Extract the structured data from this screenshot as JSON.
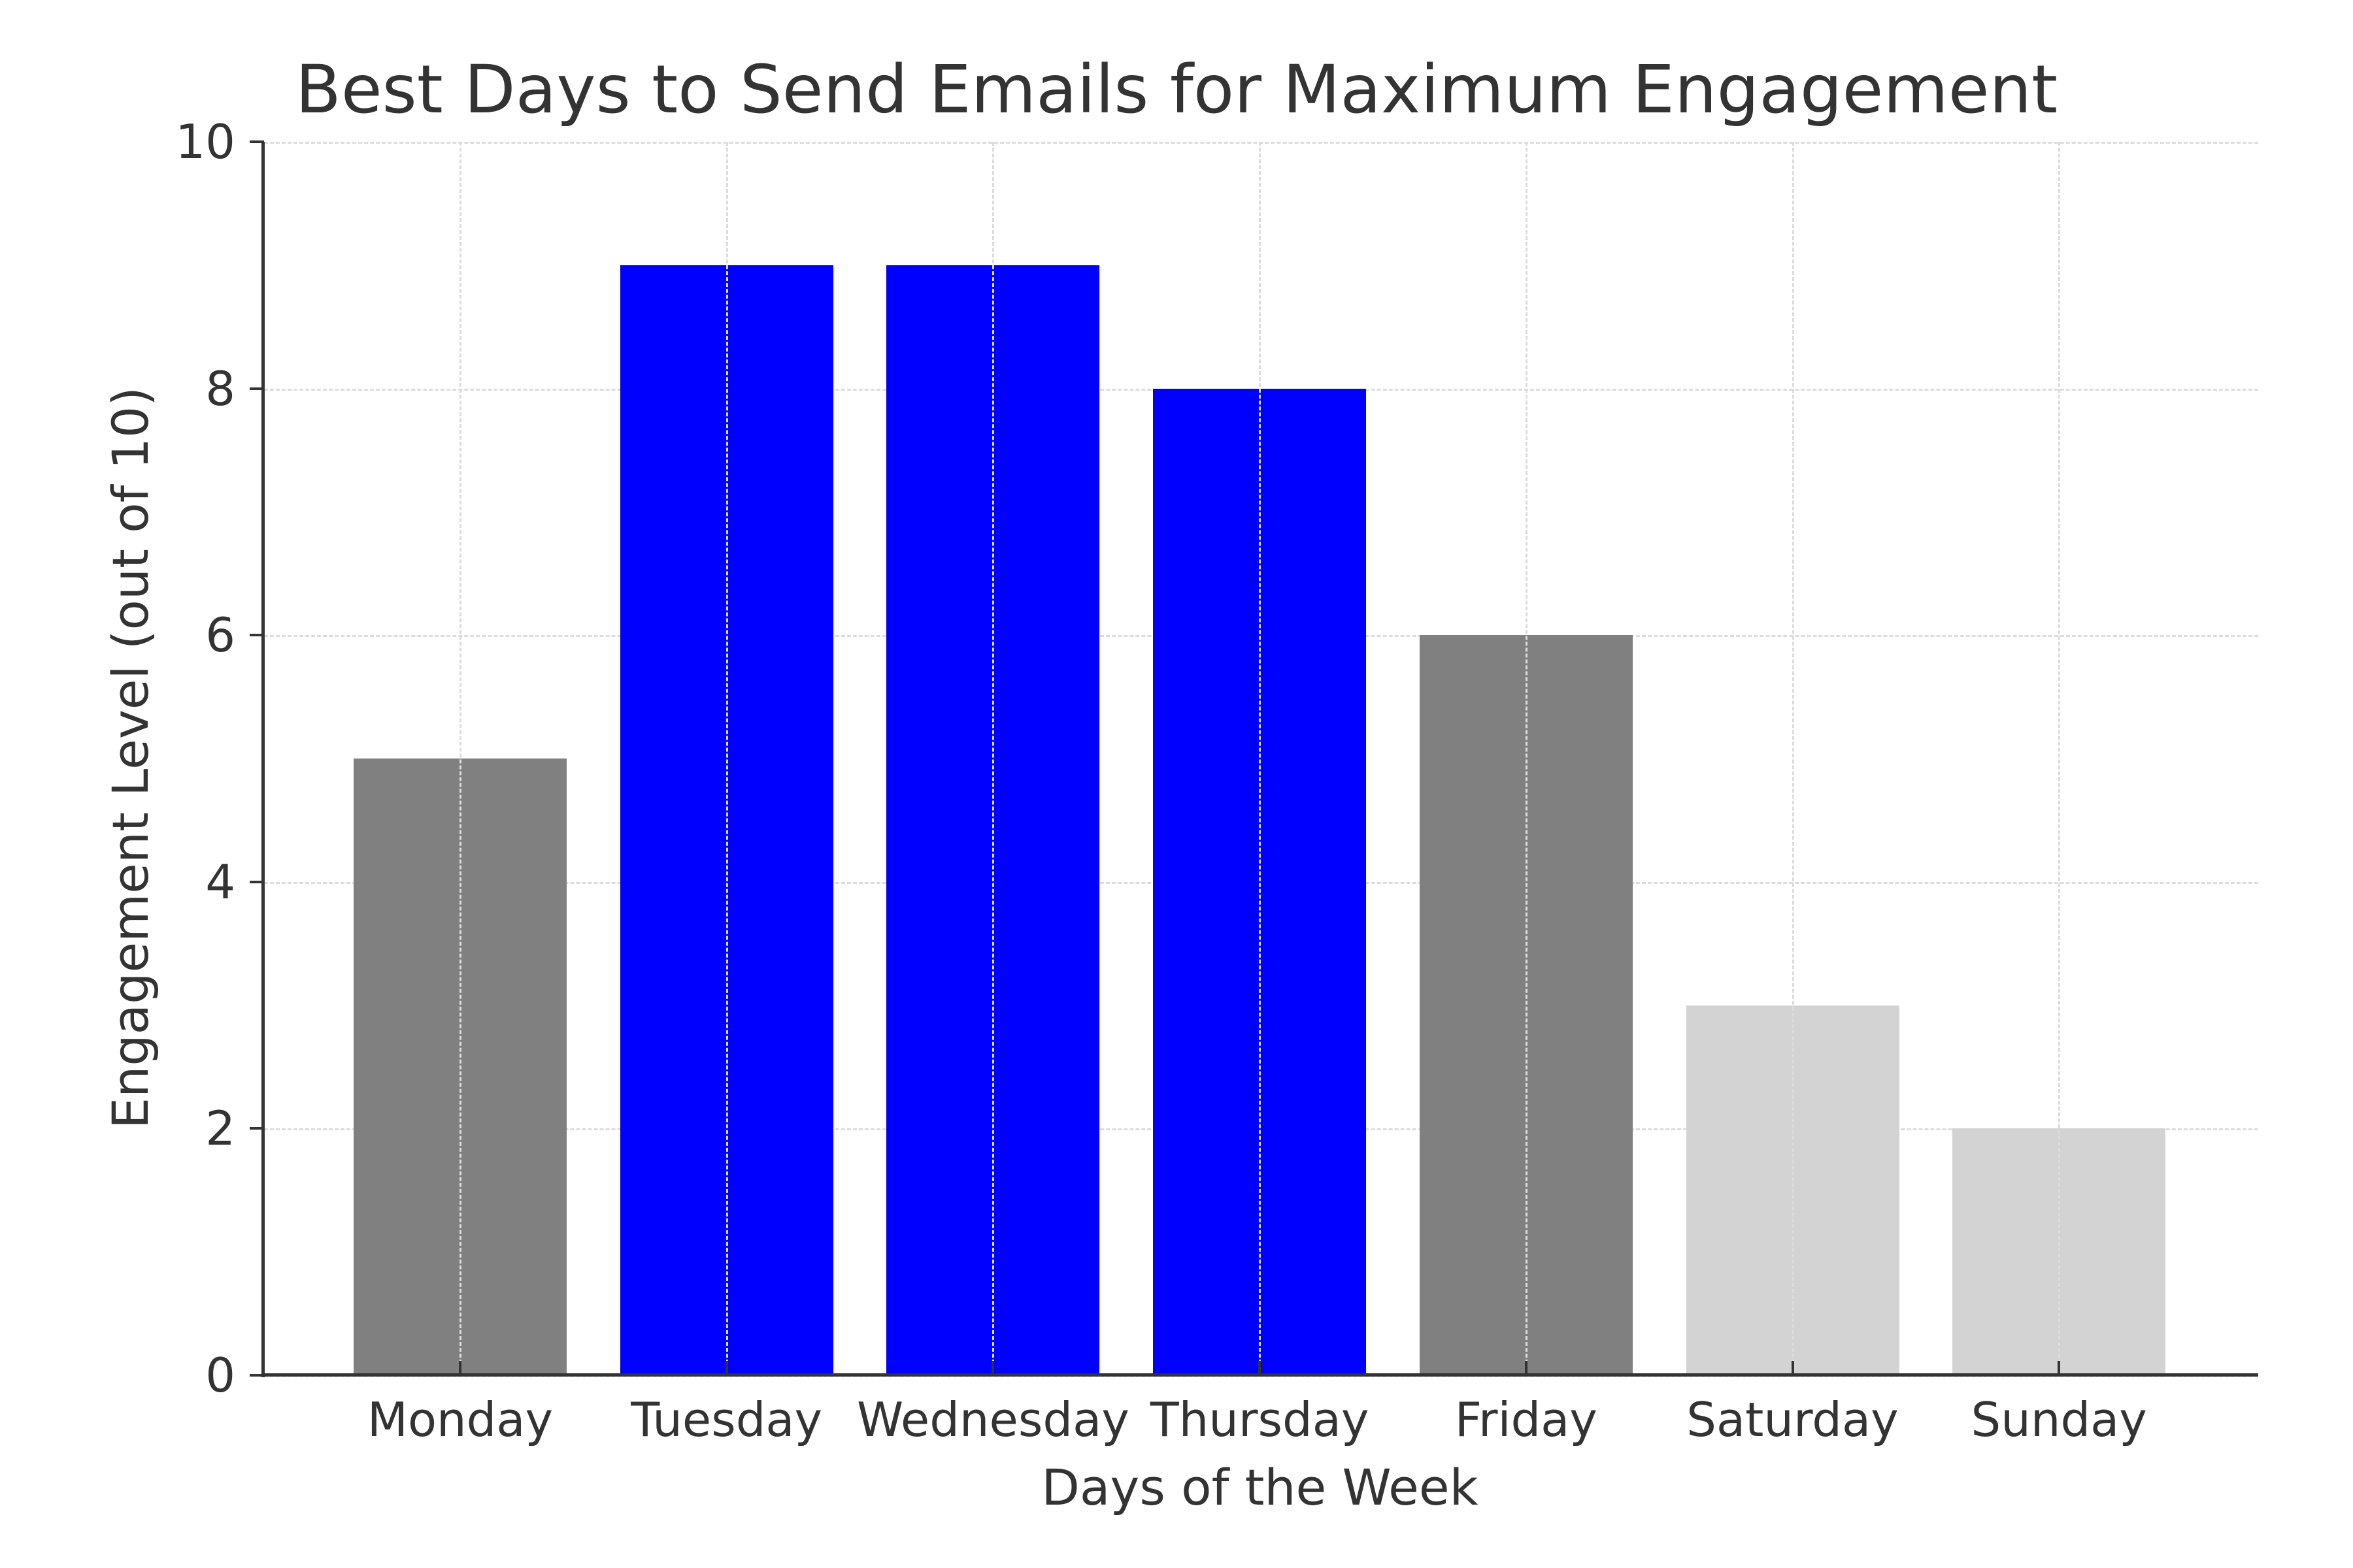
{
  "chart_data": {
    "type": "bar",
    "title": "Best Days to Send Emails for Maximum Engagement",
    "xlabel": "Days of the Week",
    "ylabel": "Engagement Level (out of 10)",
    "categories": [
      "Monday",
      "Tuesday",
      "Wednesday",
      "Thursday",
      "Friday",
      "Saturday",
      "Sunday"
    ],
    "values": [
      5,
      9,
      9,
      8,
      6,
      3,
      2
    ],
    "bar_colors": [
      "#808080",
      "#0000ff",
      "#0000ff",
      "#0000ff",
      "#808080",
      "#d3d3d3",
      "#d3d3d3"
    ],
    "ylim": [
      0,
      10
    ],
    "yticks": [
      0,
      2,
      4,
      6,
      8,
      10
    ],
    "grid": true,
    "legend": null
  },
  "labels": {
    "title": "Best Days to Send Emails for Maximum Engagement",
    "xlabel": "Days of the Week",
    "ylabel": "Engagement Level (out of 10)",
    "yticks": [
      "0",
      "2",
      "4",
      "6",
      "8",
      "10"
    ],
    "xticks": [
      "Monday",
      "Tuesday",
      "Wednesday",
      "Thursday",
      "Friday",
      "Saturday",
      "Sunday"
    ]
  }
}
